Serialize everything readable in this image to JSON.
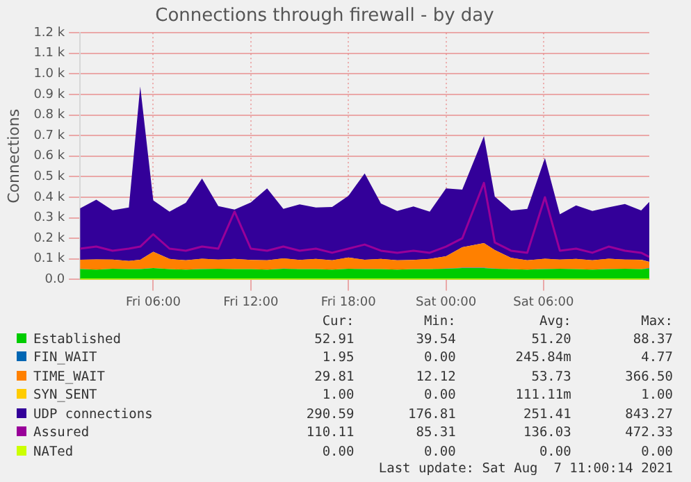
{
  "chart_data": {
    "type": "area",
    "title": "Connections through firewall - by day",
    "ylabel": "Connections",
    "stacked": true,
    "grid": true,
    "legend": "bottom",
    "marker": "none",
    "x": [
      "2021-08-06T01:30",
      "2021-08-06T02:30",
      "2021-08-06T03:30",
      "2021-08-06T04:30",
      "2021-08-06T05:12",
      "2021-08-06T06:00",
      "2021-08-06T07:00",
      "2021-08-06T08:00",
      "2021-08-06T09:00",
      "2021-08-06T10:00",
      "2021-08-06T11:00",
      "2021-08-06T12:00",
      "2021-08-06T13:00",
      "2021-08-06T14:00",
      "2021-08-06T15:00",
      "2021-08-06T16:00",
      "2021-08-06T17:00",
      "2021-08-06T18:00",
      "2021-08-06T19:00",
      "2021-08-06T20:00",
      "2021-08-06T21:00",
      "2021-08-06T22:00",
      "2021-08-06T23:00",
      "2021-08-07T00:00",
      "2021-08-07T01:00",
      "2021-08-07T02:20",
      "2021-08-07T03:00",
      "2021-08-07T04:00",
      "2021-08-07T05:00",
      "2021-08-07T06:05",
      "2021-08-07T07:00",
      "2021-08-07T08:00",
      "2021-08-07T09:00",
      "2021-08-07T10:00",
      "2021-08-07T11:00",
      "2021-08-07T12:00",
      "2021-08-07T12:30"
    ],
    "xlim": [
      "2021-08-06T01:30",
      "2021-08-07T12:30"
    ],
    "xticks": [
      {
        "value": "2021-08-06T06:00",
        "label": "Fri 06:00"
      },
      {
        "value": "2021-08-06T12:00",
        "label": "Fri 12:00"
      },
      {
        "value": "2021-08-06T18:00",
        "label": "Fri 18:00"
      },
      {
        "value": "2021-08-07T00:00",
        "label": "Sat 00:00"
      },
      {
        "value": "2021-08-07T06:00",
        "label": "Sat 06:00"
      }
    ],
    "ylim": [
      0,
      1200
    ],
    "yticks": [
      {
        "value": 0,
        "label": "0.0"
      },
      {
        "value": 100,
        "label": "0.1 k"
      },
      {
        "value": 200,
        "label": "0.2 k"
      },
      {
        "value": 300,
        "label": "0.3 k"
      },
      {
        "value": 400,
        "label": "0.4 k"
      },
      {
        "value": 500,
        "label": "0.5 k"
      },
      {
        "value": 600,
        "label": "0.6 k"
      },
      {
        "value": 700,
        "label": "0.7 k"
      },
      {
        "value": 800,
        "label": "0.8 k"
      },
      {
        "value": 900,
        "label": "0.9 k"
      },
      {
        "value": 1000,
        "label": "1.0 k"
      },
      {
        "value": 1100,
        "label": "1.1 k"
      },
      {
        "value": 1200,
        "label": "1.2 k"
      }
    ],
    "series": [
      {
        "name": "Established",
        "color": "#00cc00",
        "values": [
          50,
          48,
          52,
          50,
          50,
          55,
          50,
          48,
          50,
          52,
          50,
          50,
          48,
          52,
          50,
          50,
          48,
          52,
          50,
          50,
          48,
          50,
          50,
          52,
          55,
          55,
          52,
          50,
          48,
          50,
          52,
          50,
          48,
          50,
          52,
          50,
          53
        ]
      },
      {
        "name": "FIN_WAIT",
        "color": "#0066b3",
        "values": [
          1,
          0,
          0,
          0,
          1,
          0,
          0,
          0,
          1,
          0,
          0,
          0,
          0,
          1,
          0,
          0,
          0,
          0,
          1,
          0,
          0,
          0,
          0,
          1,
          2,
          2,
          1,
          0,
          0,
          1,
          0,
          0,
          0,
          1,
          0,
          0,
          2
        ]
      },
      {
        "name": "TIME_WAIT",
        "color": "#ff8000",
        "values": [
          45,
          50,
          45,
          40,
          45,
          80,
          50,
          45,
          50,
          45,
          50,
          45,
          45,
          50,
          45,
          50,
          45,
          55,
          45,
          50,
          45,
          45,
          50,
          60,
          100,
          120,
          90,
          55,
          45,
          50,
          45,
          50,
          45,
          50,
          45,
          45,
          30
        ]
      },
      {
        "name": "SYN_SENT",
        "color": "#ffcc00",
        "values": [
          0,
          0,
          0,
          0,
          0,
          0,
          0,
          0,
          0,
          0,
          0,
          0,
          0,
          0,
          0,
          0,
          0,
          0,
          0,
          0,
          0,
          0,
          0,
          0,
          0,
          0,
          0,
          0,
          0,
          0,
          0,
          0,
          0,
          0,
          0,
          1,
          1
        ]
      },
      {
        "name": "UDP connections",
        "color": "#330099",
        "values": [
          250,
          290,
          240,
          260,
          843,
          250,
          230,
          280,
          390,
          260,
          240,
          280,
          350,
          240,
          270,
          250,
          260,
          300,
          420,
          270,
          240,
          260,
          230,
          330,
          280,
          520,
          260,
          230,
          250,
          490,
          220,
          260,
          240,
          250,
          270,
          240,
          291
        ]
      },
      {
        "name": "Assured",
        "color": "#990099",
        "type": "line",
        "values": [
          150,
          160,
          140,
          150,
          160,
          220,
          150,
          140,
          160,
          150,
          330,
          150,
          140,
          160,
          140,
          150,
          130,
          150,
          170,
          140,
          130,
          140,
          130,
          160,
          200,
          470,
          180,
          140,
          130,
          400,
          140,
          150,
          130,
          160,
          140,
          130,
          110
        ]
      },
      {
        "name": "NATed",
        "color": "#ccff00",
        "type": "line",
        "values": [
          0,
          0,
          0,
          0,
          0,
          0,
          0,
          0,
          0,
          0,
          0,
          0,
          0,
          0,
          0,
          0,
          0,
          0,
          0,
          0,
          0,
          0,
          0,
          0,
          0,
          0,
          0,
          0,
          0,
          0,
          0,
          0,
          0,
          0,
          0,
          0,
          0
        ]
      }
    ],
    "annotations": [
      "Cur:",
      "Min:",
      "Avg:",
      "Max:",
      "52.91",
      "39.54",
      "51.20",
      "88.37",
      "1.95",
      "0.00",
      "245.84m",
      "4.77",
      "29.81",
      "12.12",
      "53.73",
      "366.50",
      "1.00",
      "0.00",
      "111.11m",
      "1.00",
      "290.59",
      "176.81",
      "251.41",
      "843.27",
      "110.11",
      "85.31",
      "136.03",
      "472.33",
      "0.00",
      "0.00",
      "0.00",
      "0.00",
      "Last update: Sat Aug  7 11:00:14 2021"
    ]
  }
}
